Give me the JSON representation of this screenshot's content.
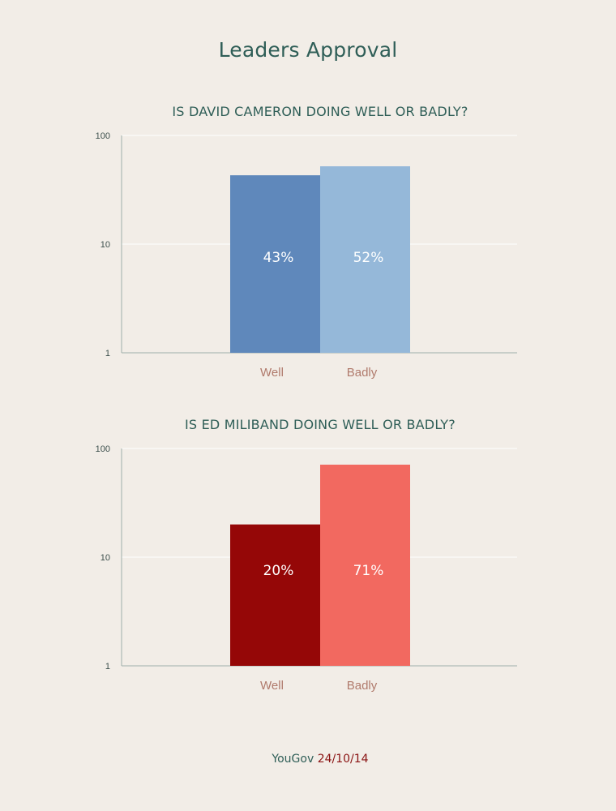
{
  "title": "Leaders Approval",
  "footer": {
    "source": "YouGov",
    "date": "24/10/14"
  },
  "chart_data": [
    {
      "type": "bar",
      "title": "IS DAVID CAMERON DOING WELL OR BADLY?",
      "scale": "log",
      "ylim": [
        1,
        100
      ],
      "yticks": [
        "100",
        "10",
        "1"
      ],
      "grid": true,
      "categories": [
        "Well",
        "Badly"
      ],
      "values": [
        43,
        52
      ],
      "data_labels": [
        "43%",
        "52%"
      ],
      "colors": [
        "#5f88bb",
        "#95b8d9"
      ],
      "xlabel": "",
      "ylabel": ""
    },
    {
      "type": "bar",
      "title": "IS ED MILIBAND DOING WELL OR BADLY?",
      "scale": "log",
      "ylim": [
        1,
        100
      ],
      "yticks": [
        "100",
        "10",
        "1"
      ],
      "grid": true,
      "categories": [
        "Well",
        "Badly"
      ],
      "values": [
        20,
        71
      ],
      "data_labels": [
        "20%",
        "71%"
      ],
      "colors": [
        "#950707",
        "#f26960"
      ],
      "xlabel": "",
      "ylabel": ""
    }
  ]
}
